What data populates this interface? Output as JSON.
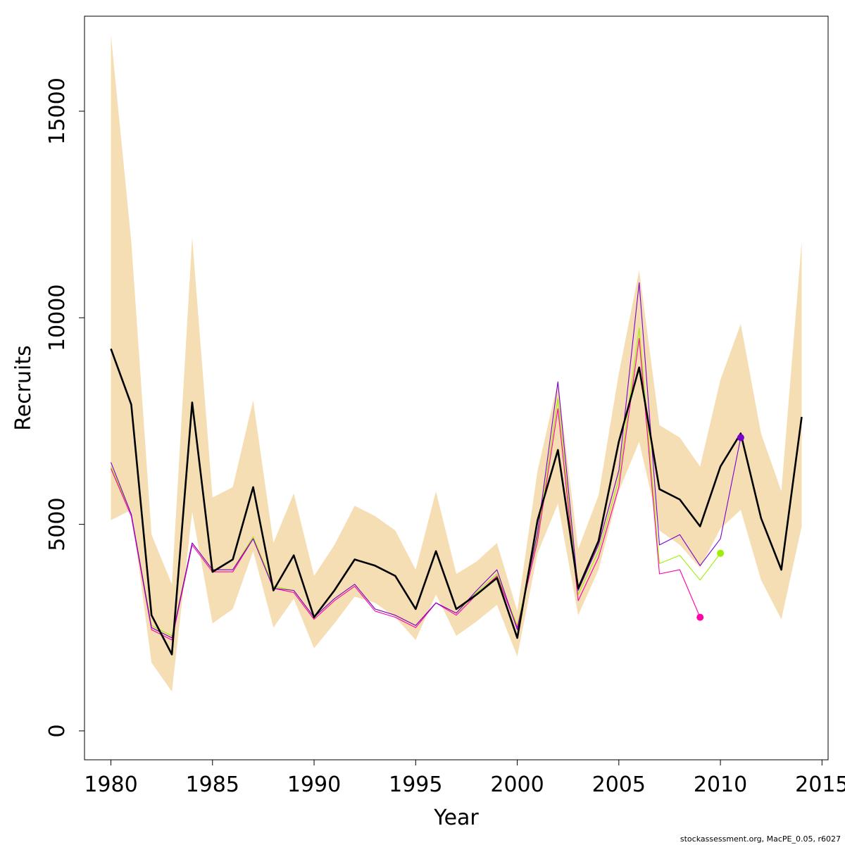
{
  "chart_data": {
    "type": "line",
    "xlabel": "Year",
    "ylabel": "Recruits",
    "xlim": [
      1978.7,
      2015.3
    ],
    "ylim": [
      -700,
      17300
    ],
    "x_ticks": [
      1980,
      1985,
      1990,
      1995,
      2000,
      2005,
      2010,
      2015
    ],
    "y_ticks": [
      0,
      5000,
      10000,
      15000
    ],
    "x_tick_labels": [
      "1980",
      "1985",
      "1990",
      "1995",
      "2000",
      "2005",
      "2010",
      "2015"
    ],
    "y_tick_labels": [
      "0",
      "5000",
      "10000",
      "15000"
    ],
    "band": {
      "color": "#f5deb3",
      "x": [
        1980,
        1981,
        1982,
        1983,
        1984,
        1985,
        1986,
        1987,
        1988,
        1989,
        1990,
        1991,
        1992,
        1993,
        1994,
        1995,
        1996,
        1997,
        1998,
        1999,
        2000,
        2001,
        2002,
        2003,
        2004,
        2005,
        2006,
        2007,
        2008,
        2009,
        2010,
        2011,
        2012,
        2013,
        2014
      ],
      "upper": [
        16850,
        11850,
        4750,
        3550,
        11950,
        5650,
        5900,
        8000,
        4550,
        5750,
        3750,
        4500,
        5450,
        5200,
        4850,
        3900,
        5800,
        3800,
        4100,
        4550,
        2900,
        6300,
        8450,
        4400,
        5700,
        8650,
        11150,
        7400,
        7100,
        6400,
        8500,
        9850,
        7200,
        5800,
        11850
      ],
      "lower": [
        5100,
        5350,
        1650,
        950,
        5300,
        2600,
        2950,
        4350,
        2500,
        3200,
        2000,
        2600,
        3250,
        3100,
        2750,
        2200,
        3300,
        2300,
        2650,
        3050,
        1800,
        4300,
        5500,
        2800,
        3900,
        5800,
        7000,
        4850,
        4500,
        3950,
        4900,
        5350,
        3650,
        2700,
        4950
      ]
    },
    "series": [
      {
        "color": "#000000",
        "x": [
          1980,
          1981,
          1982,
          1983,
          1984,
          1985,
          1986,
          1987,
          1988,
          1989,
          1990,
          1991,
          1992,
          1993,
          1994,
          1995,
          1996,
          1997,
          1998,
          1999,
          2000,
          2001,
          2002,
          2003,
          2004,
          2005,
          2006,
          2007,
          2008,
          2009,
          2010,
          2011,
          2012,
          2013,
          2014
        ],
        "values": [
          9250,
          7900,
          2800,
          1850,
          7950,
          3850,
          4150,
          5900,
          3400,
          4250,
          2750,
          3400,
          4150,
          4000,
          3750,
          2950,
          4350,
          2950,
          3300,
          3700,
          2250,
          5100,
          6800,
          3450,
          4600,
          7000,
          8800,
          5850,
          5600,
          4950,
          6400,
          7200,
          5150,
          3900,
          7600
        ]
      },
      {
        "color": "#9fee00",
        "x": [
          1980,
          1981,
          1982,
          1983,
          1984,
          1985,
          1986,
          1987,
          1988,
          1989,
          1990,
          1991,
          1992,
          1993,
          1994,
          1995,
          1996,
          1997,
          1998,
          1999,
          2000,
          2001,
          2002,
          2003,
          2004,
          2005,
          2006,
          2007,
          2008,
          2009,
          2010
        ],
        "values": [
          6400,
          5250,
          2550,
          2300,
          4550,
          3900,
          3900,
          4700,
          3500,
          3400,
          2750,
          3200,
          3550,
          2950,
          2800,
          2550,
          3100,
          2850,
          3350,
          3800,
          2550,
          4700,
          8050,
          3300,
          4350,
          6100,
          9750,
          4050,
          4250,
          3650,
          4300
        ],
        "end_point": {
          "x": 2010,
          "y": 4300
        }
      },
      {
        "color": "#ff00aa",
        "x": [
          1980,
          1981,
          1982,
          1983,
          1984,
          1985,
          1986,
          1987,
          1988,
          1989,
          1990,
          1991,
          1992,
          1993,
          1994,
          1995,
          1996,
          1997,
          1998,
          1999,
          2000,
          2001,
          2002,
          2003,
          2004,
          2005,
          2006,
          2007,
          2008,
          2009
        ],
        "values": [
          6350,
          5200,
          2450,
          2200,
          4500,
          3850,
          3850,
          4650,
          3450,
          3350,
          2700,
          3150,
          3500,
          2900,
          2750,
          2500,
          3100,
          2800,
          3300,
          3750,
          2500,
          4600,
          7800,
          3150,
          4200,
          5900,
          9500,
          3800,
          3900,
          2750
        ],
        "end_point": {
          "x": 2009,
          "y": 2750
        }
      },
      {
        "color": "#7b00d0",
        "x": [
          1980,
          1981,
          1982,
          1983,
          1984,
          1985,
          1986,
          1987,
          1988,
          1989,
          1990,
          1991,
          1992,
          1993,
          1994,
          1995,
          1996,
          1997,
          1998,
          1999,
          2000,
          2001,
          2002,
          2003,
          2004,
          2005,
          2006,
          2007,
          2008,
          2009,
          2010,
          2011
        ],
        "values": [
          6500,
          5250,
          2500,
          2250,
          4550,
          3900,
          3900,
          4650,
          3450,
          3400,
          2750,
          3200,
          3550,
          2950,
          2800,
          2550,
          3100,
          2850,
          3400,
          3900,
          2450,
          4800,
          8450,
          3400,
          4500,
          6300,
          10850,
          4500,
          4750,
          4000,
          4650,
          7100
        ],
        "end_point": {
          "x": 2011,
          "y": 7100
        }
      }
    ]
  },
  "footer": {
    "text": "stockassessment.org, MacPE_0.05, r6027"
  }
}
